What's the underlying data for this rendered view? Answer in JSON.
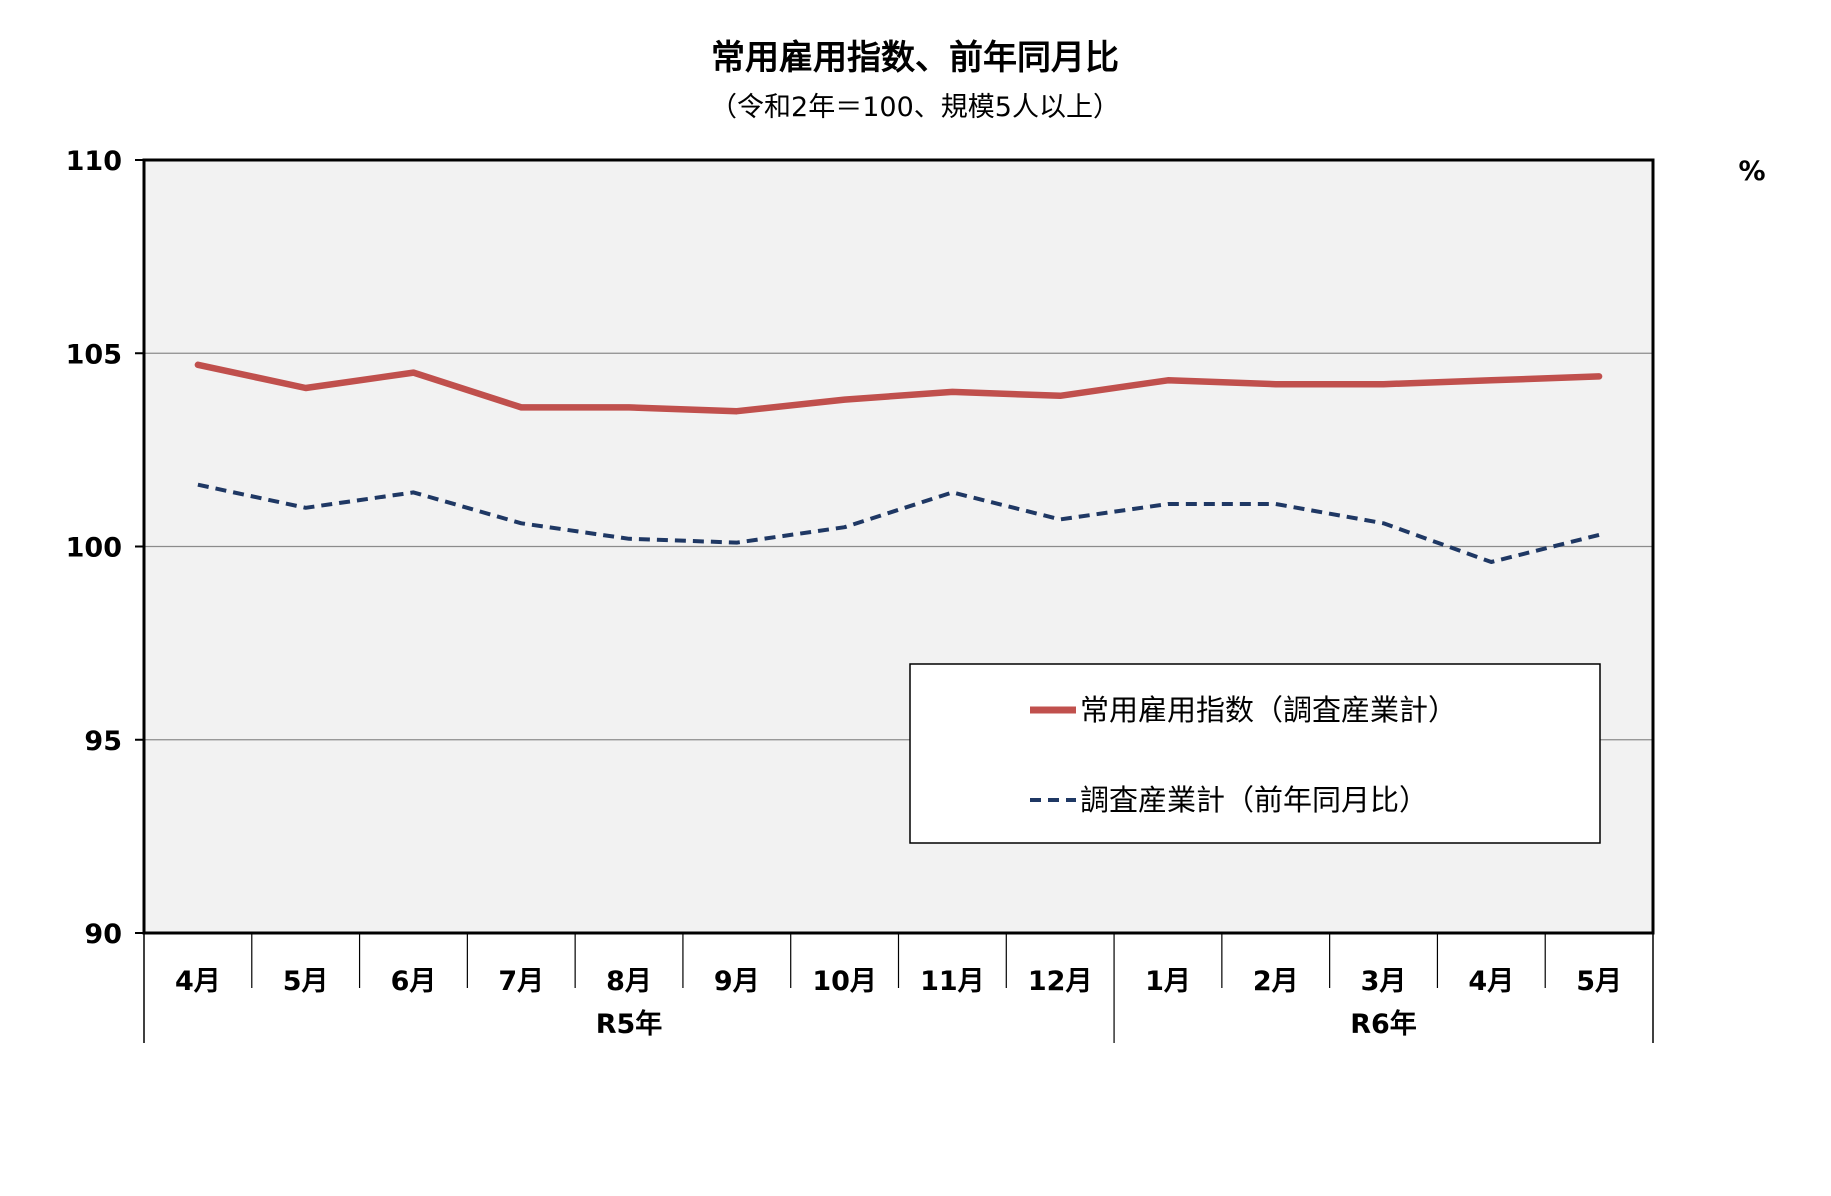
{
  "chart_data": {
    "type": "line",
    "title": "常用雇用指数、前年同月比",
    "subtitle": "（令和2年＝100、規模5人以上）",
    "y_unit": "%",
    "ylim": [
      90,
      110
    ],
    "yticks": [
      90,
      95,
      100,
      105,
      110
    ],
    "grid": true,
    "legend_position": "bottom-right",
    "categories": [
      "4月",
      "5月",
      "6月",
      "7月",
      "8月",
      "9月",
      "10月",
      "11月",
      "12月",
      "1月",
      "2月",
      "3月",
      "4月",
      "5月"
    ],
    "groups": [
      {
        "label": "R5年",
        "count": 9
      },
      {
        "label": "R6年",
        "count": 5
      }
    ],
    "series": [
      {
        "name": "常用雇用指数（調査産業計）",
        "style": "solid",
        "color": "#c0504d",
        "values": [
          104.7,
          104.1,
          104.5,
          103.6,
          103.6,
          103.5,
          103.8,
          104.0,
          103.9,
          104.3,
          104.2,
          104.2,
          104.3,
          104.4
        ]
      },
      {
        "name": "調査産業計（前年同月比）",
        "style": "dashed",
        "color": "#1f3864",
        "values": [
          101.6,
          101.0,
          101.4,
          100.6,
          100.2,
          100.1,
          100.5,
          101.4,
          100.7,
          101.1,
          101.1,
          100.6,
          99.6,
          100.3
        ]
      }
    ]
  }
}
